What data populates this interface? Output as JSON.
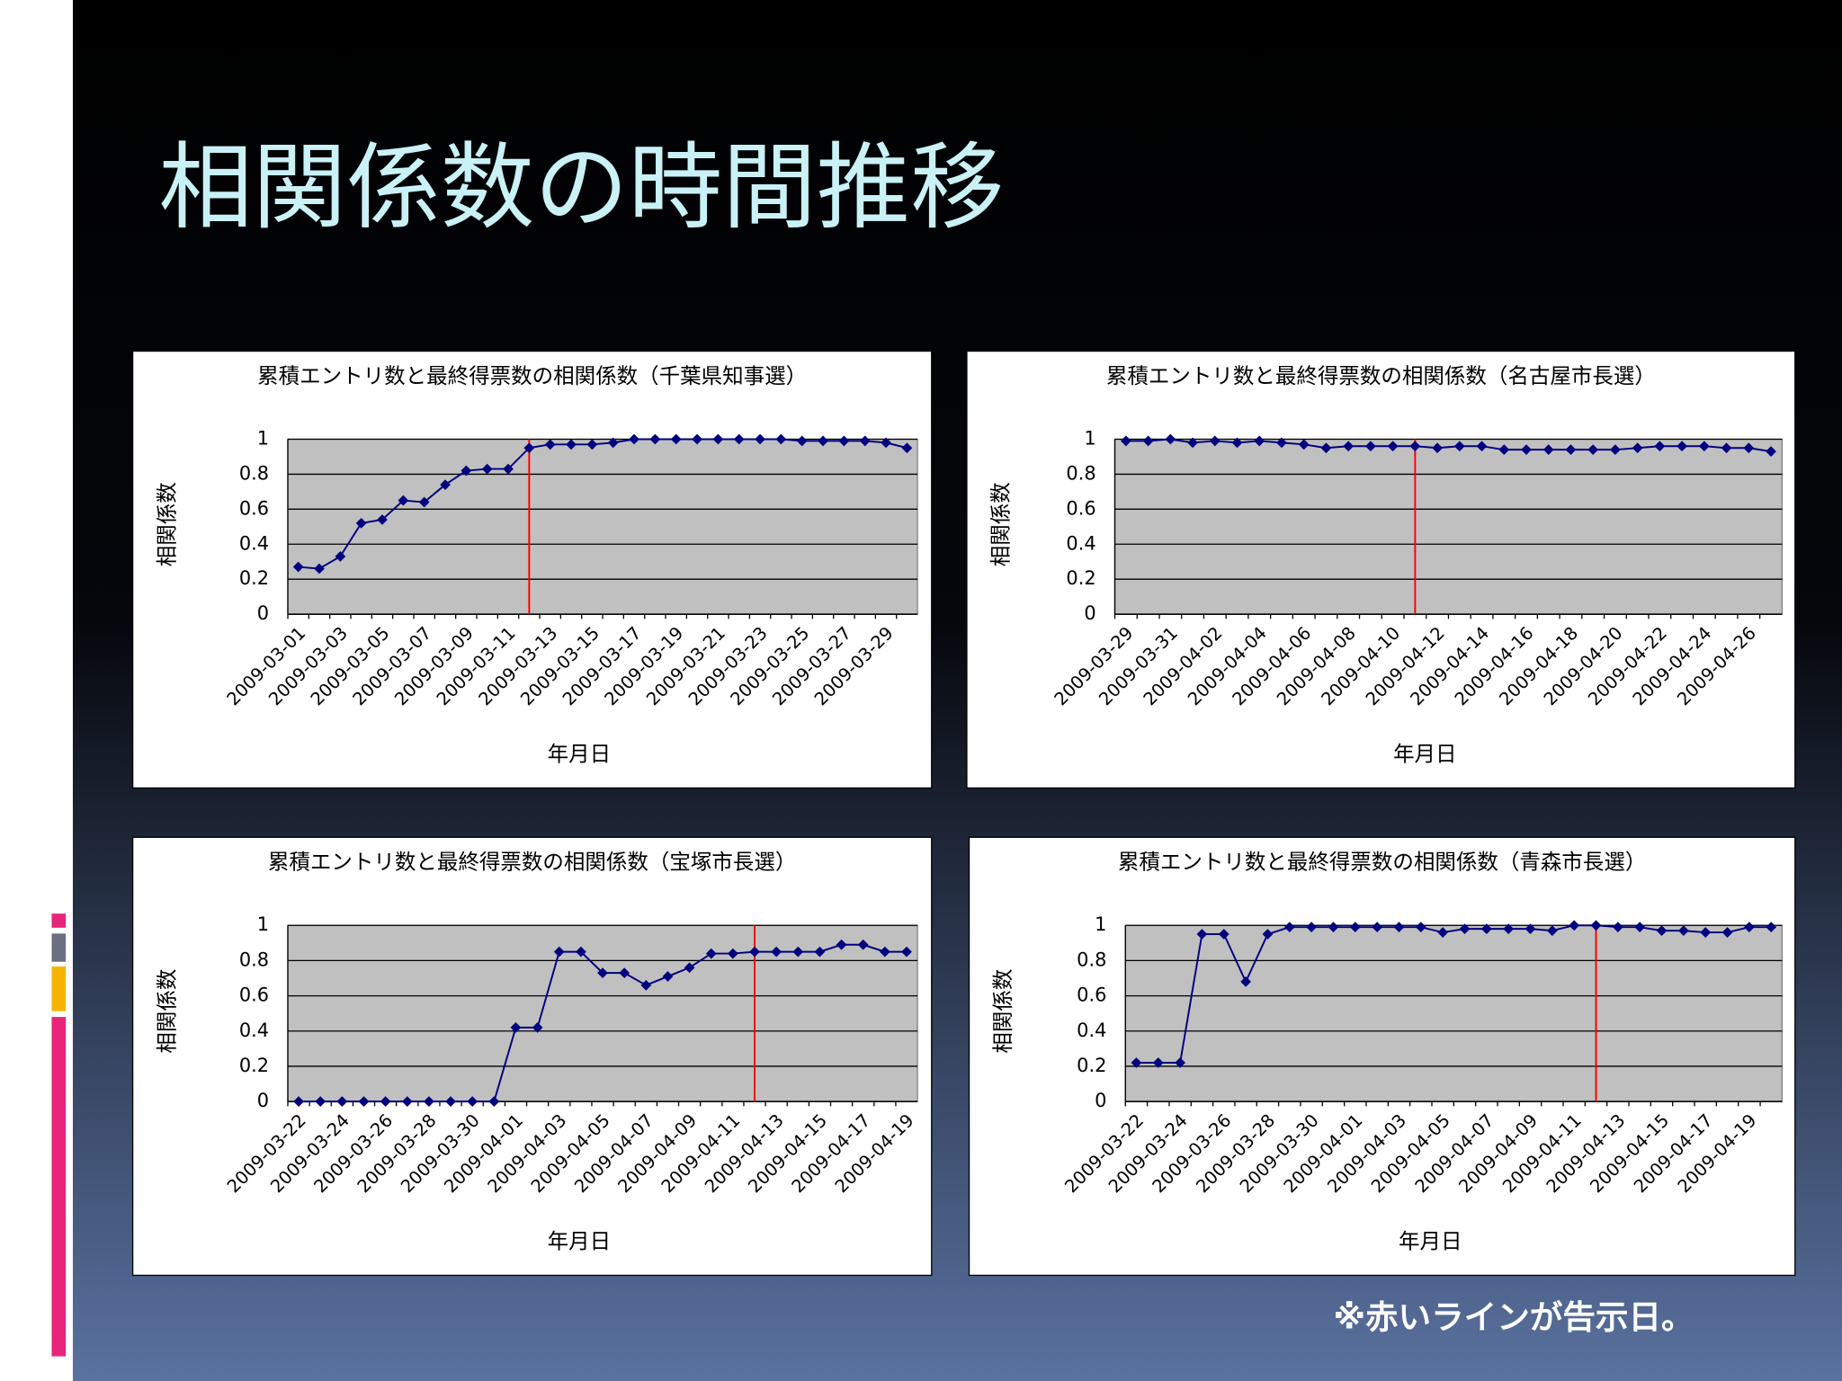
{
  "title": "相関係数の時間推移",
  "note": "※赤いラインが告示日。",
  "chart_data": [
    {
      "type": "line",
      "title": "累積エントリ数と最終得票数の相関係数（千葉県知事選）",
      "ylabel": "相関係数",
      "xlabel": "年月日",
      "categories": [
        "2009-03-01",
        null,
        "2009-03-03",
        null,
        "2009-03-05",
        null,
        "2009-03-07",
        null,
        "2009-03-09",
        null,
        "2009-03-11",
        null,
        "2009-03-13",
        null,
        "2009-03-15",
        null,
        "2009-03-17",
        null,
        "2009-03-19",
        null,
        "2009-03-21",
        null,
        "2009-03-23",
        null,
        "2009-03-25",
        null,
        "2009-03-27",
        null,
        "2009-03-29",
        null
      ],
      "series": [
        {
          "color": "#000080",
          "values": [
            0.27,
            0.26,
            0.33,
            0.52,
            0.54,
            0.65,
            0.64,
            0.74,
            0.82,
            0.83,
            0.83,
            0.95,
            0.97,
            0.97,
            0.97,
            0.98,
            1.0,
            1.0,
            1.0,
            1.0,
            1.0,
            1.0,
            1.0,
            1.0,
            0.99,
            0.99,
            0.99,
            0.99,
            0.98,
            0.95
          ]
        }
      ],
      "ylim": [
        0,
        1
      ],
      "yticks": [
        0,
        0.2,
        0.4,
        0.6,
        0.8,
        1
      ],
      "grid": true,
      "plot_background": "#c0c0c0",
      "vline": {
        "index": 11,
        "color": "#ff0000"
      }
    },
    {
      "type": "line",
      "title": "累積エントリ数と最終得票数の相関係数（名古屋市長選）",
      "ylabel": "相関係数",
      "xlabel": "年月日",
      "categories": [
        "2009-03-29",
        null,
        "2009-03-31",
        null,
        "2009-04-02",
        null,
        "2009-04-04",
        null,
        "2009-04-06",
        null,
        "2009-04-08",
        null,
        "2009-04-10",
        null,
        "2009-04-12",
        null,
        "2009-04-14",
        null,
        "2009-04-16",
        null,
        "2009-04-18",
        null,
        "2009-04-20",
        null,
        "2009-04-22",
        null,
        "2009-04-24",
        null,
        "2009-04-26",
        null
      ],
      "series": [
        {
          "color": "#000080",
          "values": [
            0.99,
            0.99,
            1.0,
            0.98,
            0.99,
            0.98,
            0.99,
            0.98,
            0.97,
            0.95,
            0.96,
            0.96,
            0.96,
            0.96,
            0.95,
            0.96,
            0.96,
            0.94,
            0.94,
            0.94,
            0.94,
            0.94,
            0.94,
            0.95,
            0.96,
            0.96,
            0.96,
            0.95,
            0.95,
            0.93
          ]
        }
      ],
      "ylim": [
        0,
        1
      ],
      "yticks": [
        0,
        0.2,
        0.4,
        0.6,
        0.8,
        1
      ],
      "grid": true,
      "plot_background": "#c0c0c0",
      "vline": {
        "index": 13,
        "color": "#ff0000"
      }
    },
    {
      "type": "line",
      "title": "累積エントリ数と最終得票数の相関係数（宝塚市長選）",
      "ylabel": "相関係数",
      "xlabel": "年月日",
      "categories": [
        "2009-03-22",
        null,
        "2009-03-24",
        null,
        "2009-03-26",
        null,
        "2009-03-28",
        null,
        "2009-03-30",
        null,
        "2009-04-01",
        null,
        "2009-04-03",
        null,
        "2009-04-05",
        null,
        "2009-04-07",
        null,
        "2009-04-09",
        null,
        "2009-04-11",
        null,
        "2009-04-13",
        null,
        "2009-04-15",
        null,
        "2009-04-17",
        null,
        "2009-04-19"
      ],
      "series": [
        {
          "color": "#000080",
          "values": [
            0,
            0,
            0,
            0,
            0,
            0,
            0,
            0,
            0,
            0,
            0.42,
            0.42,
            0.85,
            0.85,
            0.73,
            0.73,
            0.66,
            0.71,
            0.76,
            0.84,
            0.84,
            0.85,
            0.85,
            0.85,
            0.85,
            0.89,
            0.89,
            0.85,
            0.85
          ]
        }
      ],
      "ylim": [
        0,
        1
      ],
      "yticks": [
        0,
        0.2,
        0.4,
        0.6,
        0.8,
        1
      ],
      "grid": true,
      "plot_background": "#c0c0c0",
      "vline": {
        "index": 21,
        "color": "#ff0000"
      }
    },
    {
      "type": "line",
      "title": "累積エントリ数と最終得票数の相関係数（青森市長選）",
      "ylabel": "相関係数",
      "xlabel": "年月日",
      "categories": [
        "2009-03-22",
        null,
        "2009-03-24",
        null,
        "2009-03-26",
        null,
        "2009-03-28",
        null,
        "2009-03-30",
        null,
        "2009-04-01",
        null,
        "2009-04-03",
        null,
        "2009-04-05",
        null,
        "2009-04-07",
        null,
        "2009-04-09",
        null,
        "2009-04-11",
        null,
        "2009-04-13",
        null,
        "2009-04-15",
        null,
        "2009-04-17",
        null,
        "2009-04-19",
        null
      ],
      "series": [
        {
          "color": "#000080",
          "values": [
            0.22,
            0.22,
            0.22,
            0.95,
            0.95,
            0.68,
            0.95,
            0.99,
            0.99,
            0.99,
            0.99,
            0.99,
            0.99,
            0.99,
            0.96,
            0.98,
            0.98,
            0.98,
            0.98,
            0.97,
            1.0,
            1.0,
            0.99,
            0.99,
            0.97,
            0.97,
            0.96,
            0.96,
            0.99,
            0.99
          ]
        }
      ],
      "ylim": [
        0,
        1
      ],
      "yticks": [
        0,
        0.2,
        0.4,
        0.6,
        0.8,
        1
      ],
      "grid": true,
      "plot_background": "#c0c0c0",
      "vline": {
        "index": 21,
        "color": "#ff0000"
      }
    }
  ]
}
